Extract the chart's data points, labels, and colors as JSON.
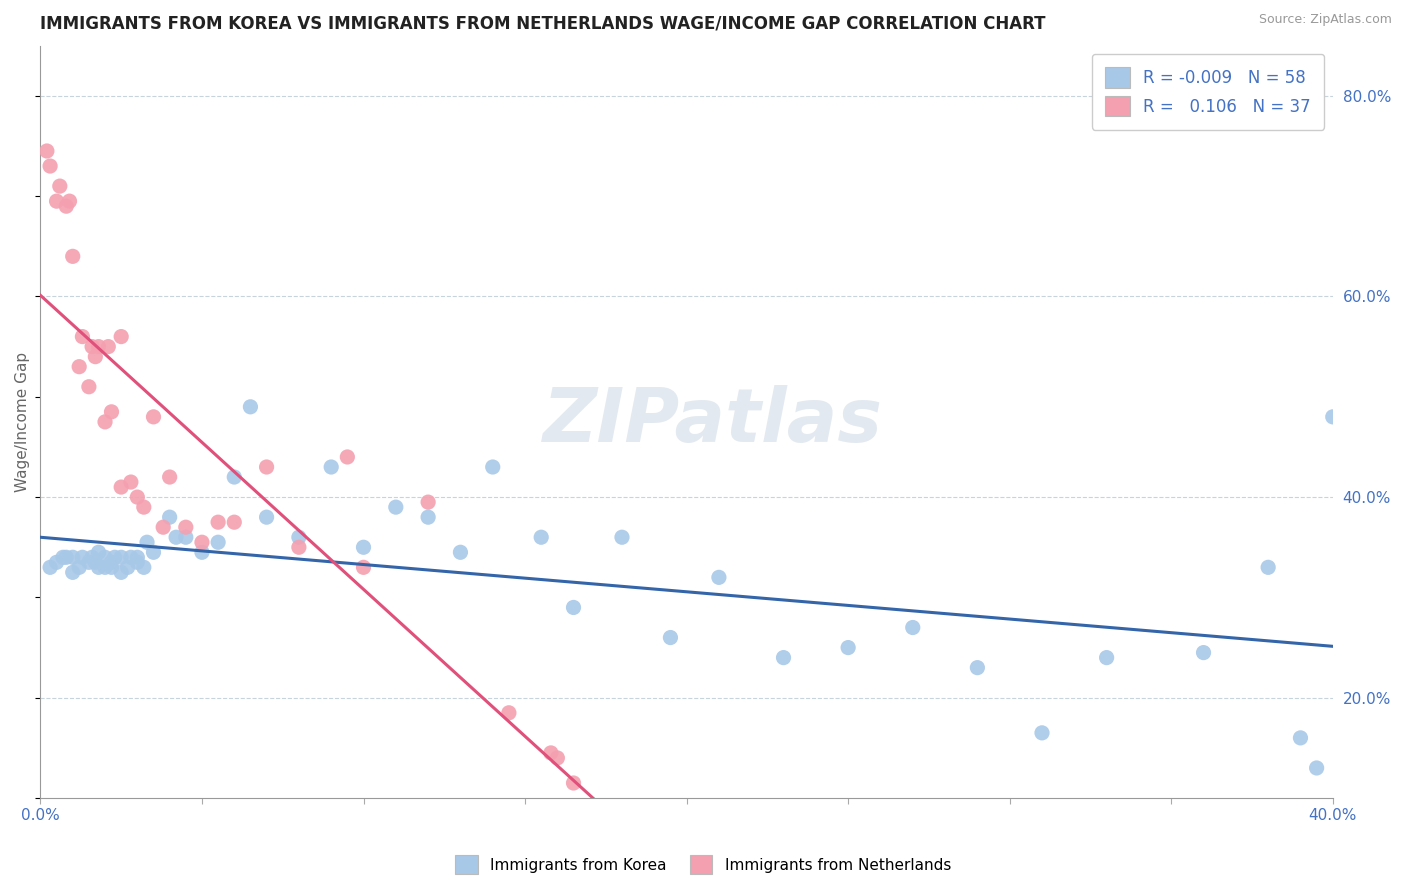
{
  "title": "IMMIGRANTS FROM KOREA VS IMMIGRANTS FROM NETHERLANDS WAGE/INCOME GAP CORRELATION CHART",
  "source": "Source: ZipAtlas.com",
  "ylabel": "Wage/Income Gap",
  "xlim": [
    0.0,
    0.4
  ],
  "ylim": [
    0.1,
    0.85
  ],
  "xticks": [
    0.0,
    0.05,
    0.1,
    0.15,
    0.2,
    0.25,
    0.3,
    0.35,
    0.4
  ],
  "yticks_right": [
    0.2,
    0.4,
    0.6,
    0.8
  ],
  "yticklabels_right": [
    "20.0%",
    "40.0%",
    "60.0%",
    "80.0%"
  ],
  "korea_R": "-0.009",
  "korea_N": "58",
  "netherlands_R": "0.106",
  "netherlands_N": "37",
  "korea_color": "#a8c8e8",
  "netherlands_color": "#f4a0b0",
  "korea_line_color": "#3465a8",
  "netherlands_line_color": "#e0507a",
  "netherlands_line_dash": true,
  "background_color": "#ffffff",
  "grid_color": "#c8d4dc",
  "watermark": "ZIPatlas",
  "korea_scatter_x": [
    0.003,
    0.005,
    0.007,
    0.008,
    0.01,
    0.01,
    0.012,
    0.013,
    0.015,
    0.016,
    0.017,
    0.018,
    0.018,
    0.02,
    0.02,
    0.022,
    0.022,
    0.023,
    0.025,
    0.025,
    0.027,
    0.028,
    0.03,
    0.03,
    0.032,
    0.033,
    0.035,
    0.04,
    0.042,
    0.045,
    0.05,
    0.055,
    0.06,
    0.065,
    0.07,
    0.08,
    0.09,
    0.1,
    0.11,
    0.12,
    0.13,
    0.14,
    0.155,
    0.165,
    0.18,
    0.195,
    0.21,
    0.23,
    0.25,
    0.27,
    0.29,
    0.31,
    0.33,
    0.36,
    0.38,
    0.39,
    0.395,
    0.4
  ],
  "korea_scatter_y": [
    0.33,
    0.335,
    0.34,
    0.34,
    0.325,
    0.34,
    0.33,
    0.34,
    0.335,
    0.34,
    0.335,
    0.33,
    0.345,
    0.33,
    0.34,
    0.335,
    0.33,
    0.34,
    0.325,
    0.34,
    0.33,
    0.34,
    0.34,
    0.335,
    0.33,
    0.355,
    0.345,
    0.38,
    0.36,
    0.36,
    0.345,
    0.355,
    0.42,
    0.49,
    0.38,
    0.36,
    0.43,
    0.35,
    0.39,
    0.38,
    0.345,
    0.43,
    0.36,
    0.29,
    0.36,
    0.26,
    0.32,
    0.24,
    0.25,
    0.27,
    0.23,
    0.165,
    0.24,
    0.245,
    0.33,
    0.16,
    0.13,
    0.48
  ],
  "netherlands_scatter_x": [
    0.002,
    0.003,
    0.005,
    0.006,
    0.008,
    0.009,
    0.01,
    0.012,
    0.013,
    0.015,
    0.016,
    0.017,
    0.018,
    0.02,
    0.021,
    0.022,
    0.025,
    0.025,
    0.028,
    0.03,
    0.032,
    0.035,
    0.038,
    0.04,
    0.045,
    0.05,
    0.055,
    0.06,
    0.07,
    0.08,
    0.095,
    0.1,
    0.12,
    0.145,
    0.158,
    0.16,
    0.165
  ],
  "netherlands_scatter_y": [
    0.745,
    0.73,
    0.695,
    0.71,
    0.69,
    0.695,
    0.64,
    0.53,
    0.56,
    0.51,
    0.55,
    0.54,
    0.55,
    0.475,
    0.55,
    0.485,
    0.41,
    0.56,
    0.415,
    0.4,
    0.39,
    0.48,
    0.37,
    0.42,
    0.37,
    0.355,
    0.375,
    0.375,
    0.43,
    0.35,
    0.44,
    0.33,
    0.395,
    0.185,
    0.145,
    0.14,
    0.115
  ]
}
